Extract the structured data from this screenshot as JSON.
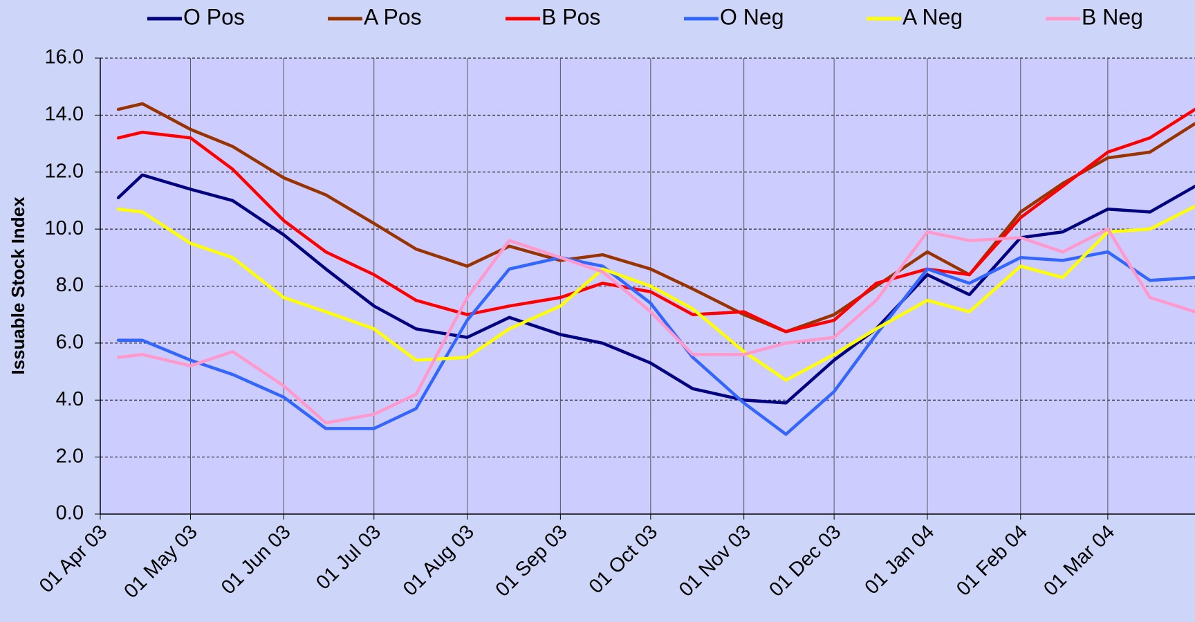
{
  "chart_data": {
    "type": "line",
    "y_label": "Issuable Stock Index",
    "x": [
      "2003-04-07",
      "2003-04-15",
      "2003-05-01",
      "2003-05-15",
      "2003-06-01",
      "2003-06-15",
      "2003-07-01",
      "2003-07-15",
      "2003-08-01",
      "2003-08-15",
      "2003-09-01",
      "2003-09-15",
      "2003-10-01",
      "2003-10-15",
      "2003-11-01",
      "2003-11-15",
      "2003-12-01",
      "2003-12-15",
      "2004-01-01",
      "2004-01-15",
      "2004-02-01",
      "2004-02-15",
      "2004-03-01",
      "2004-03-15",
      "2004-03-30"
    ],
    "series": [
      {
        "name": "O Pos",
        "color": "#000080",
        "values": [
          11.1,
          11.9,
          11.4,
          11.0,
          9.8,
          8.6,
          7.3,
          6.5,
          6.2,
          6.9,
          6.3,
          6.0,
          5.3,
          4.4,
          4.0,
          3.9,
          5.4,
          6.5,
          8.4,
          7.7,
          9.7,
          9.9,
          10.7,
          10.6,
          11.5
        ]
      },
      {
        "name": "A Pos",
        "color": "#993300",
        "values": [
          14.2,
          14.4,
          13.5,
          12.9,
          11.8,
          11.2,
          10.2,
          9.3,
          8.7,
          9.4,
          8.9,
          9.1,
          8.6,
          7.9,
          7.0,
          6.4,
          7.0,
          8.0,
          9.2,
          8.4,
          10.6,
          11.6,
          12.5,
          12.7,
          13.7
        ]
      },
      {
        "name": "B Pos",
        "color": "#ff0000",
        "values": [
          13.2,
          13.4,
          13.2,
          12.1,
          10.3,
          9.2,
          8.4,
          7.5,
          7.0,
          7.3,
          7.6,
          8.1,
          7.8,
          7.0,
          7.1,
          6.4,
          6.8,
          8.1,
          8.6,
          8.4,
          10.4,
          11.5,
          12.7,
          13.2,
          14.2
        ]
      },
      {
        "name": "O Neg",
        "color": "#3366ff",
        "values": [
          6.1,
          6.1,
          5.4,
          4.9,
          4.1,
          3.0,
          3.0,
          3.7,
          6.8,
          8.6,
          9.0,
          8.7,
          7.4,
          5.5,
          3.9,
          2.8,
          4.3,
          6.3,
          8.6,
          8.1,
          9.0,
          8.9,
          9.2,
          8.2,
          8.3
        ]
      },
      {
        "name": "A Neg",
        "color": "#ffff00",
        "values": [
          10.7,
          10.6,
          9.5,
          9.0,
          7.6,
          7.1,
          6.5,
          5.4,
          5.5,
          6.5,
          7.3,
          8.6,
          8.0,
          7.2,
          5.7,
          4.7,
          5.6,
          6.5,
          7.5,
          7.1,
          8.7,
          8.3,
          9.9,
          10.0,
          10.8
        ]
      },
      {
        "name": "B Neg",
        "color": "#ff99cc",
        "values": [
          5.5,
          5.6,
          5.2,
          5.7,
          4.5,
          3.2,
          3.5,
          4.2,
          7.6,
          9.6,
          9.0,
          8.5,
          7.1,
          5.6,
          5.6,
          6.0,
          6.2,
          7.5,
          9.9,
          9.6,
          9.7,
          9.2,
          10.0,
          7.6,
          7.1
        ]
      }
    ],
    "xlim": [
      "2003-04-01",
      "2004-03-30"
    ],
    "xticks": [
      {
        "value": "2003-04-01",
        "label": "01 Apr 03"
      },
      {
        "value": "2003-05-01",
        "label": "01 May 03"
      },
      {
        "value": "2003-06-01",
        "label": "01 Jun 03"
      },
      {
        "value": "2003-07-01",
        "label": "01 Jul 03"
      },
      {
        "value": "2003-08-01",
        "label": "01 Aug 03"
      },
      {
        "value": "2003-09-01",
        "label": "01 Sep 03"
      },
      {
        "value": "2003-10-01",
        "label": "01 Oct 03"
      },
      {
        "value": "2003-11-01",
        "label": "01 Nov 03"
      },
      {
        "value": "2003-12-01",
        "label": "01 Dec 03"
      },
      {
        "value": "2004-01-01",
        "label": "01 Jan 04"
      },
      {
        "value": "2004-02-01",
        "label": "01 Feb 04"
      },
      {
        "value": "2004-03-01",
        "label": "01 Mar 04"
      }
    ],
    "ylim": [
      0,
      16
    ],
    "yticks": [
      {
        "value": 0,
        "label": "0.0"
      },
      {
        "value": 2,
        "label": "2.0"
      },
      {
        "value": 4,
        "label": "4.0"
      },
      {
        "value": 6,
        "label": "6.0"
      },
      {
        "value": 8,
        "label": "8.0"
      },
      {
        "value": 10,
        "label": "10.0"
      },
      {
        "value": 12,
        "label": "12.0"
      },
      {
        "value": 14,
        "label": "14.0"
      },
      {
        "value": 16,
        "label": "16.0"
      }
    ],
    "grid": true,
    "legend": "top"
  }
}
